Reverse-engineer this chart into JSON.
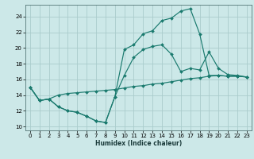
{
  "title": "",
  "xlabel": "Humidex (Indice chaleur)",
  "background_color": "#cce8e8",
  "grid_color": "#aacccc",
  "line_color": "#1a7a6e",
  "xlim": [
    -0.5,
    23.5
  ],
  "ylim": [
    9.5,
    25.5
  ],
  "xticks": [
    0,
    1,
    2,
    3,
    4,
    5,
    6,
    7,
    8,
    9,
    10,
    11,
    12,
    13,
    14,
    15,
    16,
    17,
    18,
    19,
    20,
    21,
    22,
    23
  ],
  "yticks": [
    10,
    12,
    14,
    16,
    18,
    20,
    22,
    24
  ],
  "line1_x": [
    0,
    1,
    2,
    3,
    4,
    5,
    6,
    7,
    8,
    9,
    10,
    11,
    12,
    13,
    14,
    15,
    16,
    17,
    18,
    19,
    20,
    21,
    22,
    23
  ],
  "line1_y": [
    15.0,
    13.3,
    13.5,
    14.0,
    14.2,
    14.3,
    14.4,
    14.5,
    14.6,
    14.7,
    14.9,
    15.1,
    15.2,
    15.4,
    15.5,
    15.7,
    15.9,
    16.1,
    16.2,
    16.4,
    16.5,
    16.4,
    16.4,
    16.3
  ],
  "line2_x": [
    0,
    1,
    2,
    3,
    4,
    5,
    6,
    7,
    8,
    9,
    10,
    11,
    12,
    13,
    14,
    15,
    16,
    17,
    18,
    19,
    20,
    21,
    22,
    23
  ],
  "line2_y": [
    15.0,
    13.3,
    13.5,
    12.5,
    12.0,
    11.8,
    11.3,
    10.7,
    10.5,
    13.8,
    16.5,
    18.8,
    19.8,
    20.2,
    20.4,
    19.2,
    17.0,
    17.4,
    17.2,
    19.5,
    17.4,
    16.6,
    16.5,
    16.3
  ],
  "line3_x": [
    0,
    1,
    2,
    3,
    4,
    5,
    6,
    7,
    8,
    9,
    10,
    11,
    12,
    13,
    14,
    15,
    16,
    17,
    18,
    19,
    20,
    21,
    22,
    23
  ],
  "line3_y": [
    15.0,
    13.3,
    13.5,
    12.5,
    12.0,
    11.8,
    11.3,
    10.7,
    10.5,
    13.8,
    19.8,
    20.4,
    21.8,
    22.2,
    23.5,
    23.8,
    24.7,
    25.0,
    21.8,
    16.5,
    16.5,
    16.4,
    16.4,
    16.3
  ]
}
